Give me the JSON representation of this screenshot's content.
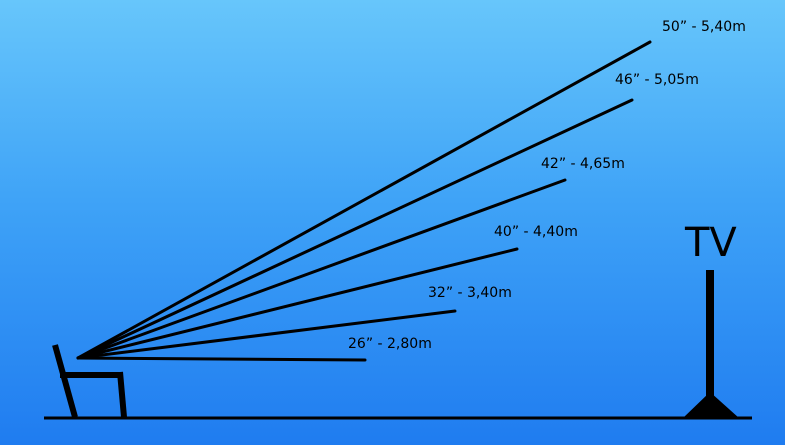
{
  "diagram": {
    "tv_label": "TV",
    "rays": [
      {
        "label": "50” - 5,40m"
      },
      {
        "label": "46” - 5,05m"
      },
      {
        "label": "42” - 4,65m"
      },
      {
        "label": "40” - 4,40m"
      },
      {
        "label": "32” - 3,40m"
      },
      {
        "label": "26” - 2,80m"
      }
    ]
  }
}
